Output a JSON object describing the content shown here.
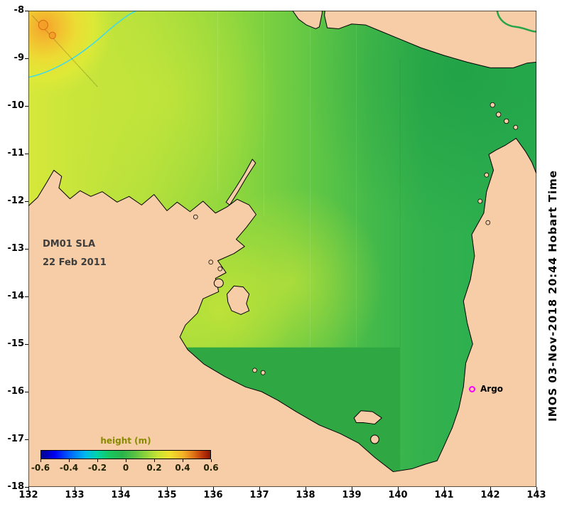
{
  "annotations": {
    "product": "DM01 SLA",
    "date": "22 Feb 2011",
    "argo_label": "Argo",
    "watermark": "IMOS 03-Nov-2018 20:44 Hobart Time"
  },
  "axes": {
    "x_ticks": [
      "132",
      "133",
      "134",
      "135",
      "136",
      "137",
      "138",
      "139",
      "140",
      "141",
      "142",
      "143"
    ],
    "y_ticks": [
      "-8",
      "-9",
      "-10",
      "-11",
      "-12",
      "-13",
      "-14",
      "-15",
      "-16",
      "-17",
      "-18"
    ]
  },
  "colorbar": {
    "title": "height (m)",
    "ticks": [
      "-0.6",
      "-0.4",
      "-0.2",
      "0",
      "0.2",
      "0.4",
      "0.6"
    ],
    "stops": [
      [
        0,
        "#00008c"
      ],
      [
        8,
        "#0000f5"
      ],
      [
        17,
        "#0064ff"
      ],
      [
        26,
        "#00b8f0"
      ],
      [
        33,
        "#00d4a8"
      ],
      [
        40,
        "#16c862"
      ],
      [
        48,
        "#2ab44b"
      ],
      [
        55,
        "#55c243"
      ],
      [
        62,
        "#90d43c"
      ],
      [
        69,
        "#c8e434"
      ],
      [
        76,
        "#f0e02c"
      ],
      [
        84,
        "#f4b227"
      ],
      [
        90,
        "#e07417"
      ],
      [
        95,
        "#c03a0a"
      ],
      [
        100,
        "#8a1400"
      ]
    ]
  },
  "colors": {
    "land": "#f6cda6",
    "coastline": "#000000",
    "sea_west_yellow_green": "#d6e83a",
    "sea_mid_green": "#8dd63e",
    "sea_east_green": "#2aad4f",
    "hotspot_orange": "#f5a12b",
    "contour_cyan": "#3fd9e9",
    "argo_magenta": "#ff00ff",
    "colorbar_title_olive": "#8a8a00"
  },
  "chart_data": {
    "type": "heatmap",
    "title": "DM01 SLA 22 Feb 2011",
    "x_axis_lon_range": [
      132,
      143
    ],
    "y_axis_lat_range": [
      -18,
      -8
    ],
    "colorbar_label": "height (m)",
    "colorbar_range": [
      -0.6,
      0.6
    ],
    "field_summary": "Sea level anomaly mostly 0.0-0.15 m (green) across Gulf of Carpentaria, rising westward to ~0.2 m (yellow-green) and peaking ~0.3-0.4 m (orange) in NW corner near 132.3E -8.3S; cyan contour encircles NW maximum; darker ~0 m block south of -15 between 135-140E",
    "marker": {
      "label": "Argo",
      "lon": 141.6,
      "lat": -15.95
    }
  }
}
